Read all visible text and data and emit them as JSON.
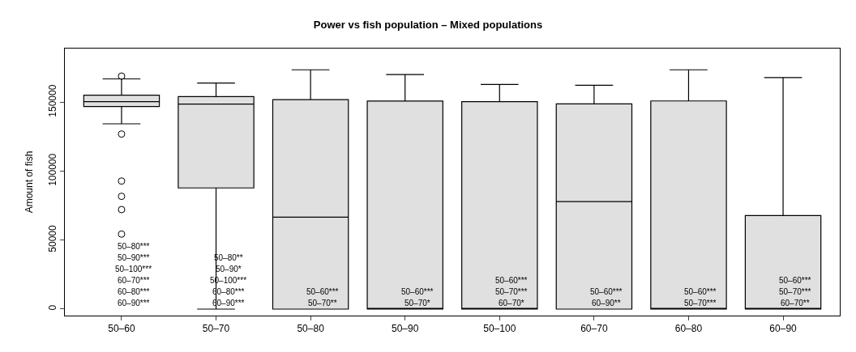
{
  "chart_data": {
    "type": "box",
    "title": "Power vs fish population – Mixed populations",
    "ylabel": "Amount of fish",
    "categories": [
      "50–60",
      "50–70",
      "50–80",
      "50–90",
      "50–100",
      "60–70",
      "60–80",
      "60–90"
    ],
    "color": "#e0e0e0",
    "boxes": [
      {
        "low": 134400,
        "q1": 147000,
        "median": 150500,
        "q3": 155200,
        "high": 167000,
        "outliers": [
          169000,
          127000,
          92900,
          81800,
          72200,
          54400
        ]
      },
      {
        "low": 0,
        "q1": 87900,
        "median": 148700,
        "q3": 154200,
        "high": 164000
      },
      {
        "low": 0,
        "q1": 0,
        "median": 66700,
        "q3": 152000,
        "high": 173600
      },
      {
        "low": 0,
        "q1": 0,
        "median": 0,
        "q3": 150900,
        "high": 170200
      },
      {
        "low": 0,
        "q1": 0,
        "median": 0,
        "q3": 150500,
        "high": 163000
      },
      {
        "low": 0,
        "q1": 0,
        "median": 78000,
        "q3": 148900,
        "high": 162400
      },
      {
        "low": 0,
        "q1": 0,
        "median": 0,
        "q3": 151000,
        "high": 173600
      },
      {
        "low": 0,
        "q1": 0,
        "median": 0,
        "q3": 67900,
        "high": 167900
      }
    ],
    "ylim": [
      -4700,
      189000
    ],
    "yticks": [
      0,
      50000,
      100000,
      150000
    ],
    "annotations": [
      "50–80***",
      "50–90***",
      "50–100***",
      "60–70***",
      "60–80***",
      "60–90***",
      "50–80**",
      "50–90*",
      "50–100***",
      "60–80***",
      "60–90***",
      "50–60***",
      "50–70**",
      "50–60***",
      "50–70*",
      "50–60***",
      "50–70***",
      "60–70*",
      "50–60***",
      "60–90**",
      "50–60***",
      "50–70***",
      "50–60***",
      "50–70***",
      "60–70**"
    ]
  }
}
